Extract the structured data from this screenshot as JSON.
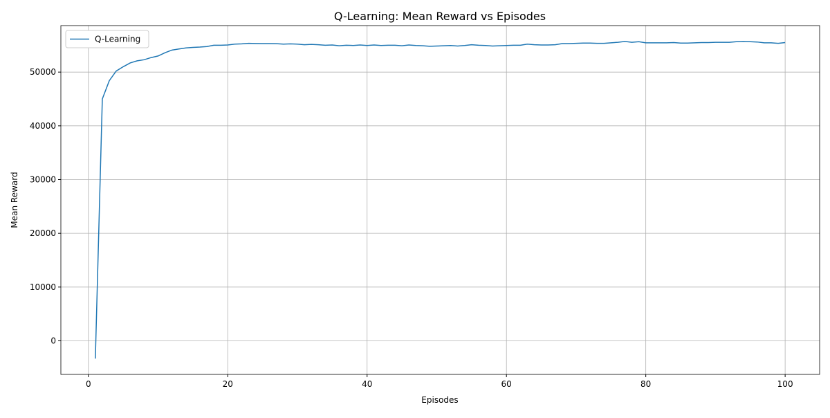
{
  "chart_data": {
    "type": "line",
    "title": "Q-Learning: Mean Reward vs Episodes",
    "xlabel": "Episodes",
    "ylabel": "Mean Reward",
    "x": [
      1,
      2,
      3,
      4,
      5,
      6,
      7,
      8,
      9,
      10,
      11,
      12,
      13,
      14,
      15,
      16,
      17,
      18,
      19,
      20,
      21,
      22,
      23,
      24,
      25,
      26,
      27,
      28,
      29,
      30,
      31,
      32,
      33,
      34,
      35,
      36,
      37,
      38,
      39,
      40,
      41,
      42,
      43,
      44,
      45,
      46,
      47,
      48,
      49,
      50,
      51,
      52,
      53,
      54,
      55,
      56,
      57,
      58,
      59,
      60,
      61,
      62,
      63,
      64,
      65,
      66,
      67,
      68,
      69,
      70,
      71,
      72,
      73,
      74,
      75,
      76,
      77,
      78,
      79,
      80,
      81,
      82,
      83,
      84,
      85,
      86,
      87,
      88,
      89,
      90,
      91,
      92,
      93,
      94,
      95,
      96,
      97,
      98,
      99,
      100
    ],
    "series": [
      {
        "name": "Q-Learning",
        "color": "#1f77b4",
        "values": [
          -3300,
          45000,
          48400,
          50200,
          51000,
          51700,
          52100,
          52300,
          52700,
          53000,
          53600,
          54100,
          54300,
          54500,
          54600,
          54650,
          54750,
          55000,
          55000,
          55050,
          55200,
          55250,
          55350,
          55320,
          55300,
          55300,
          55280,
          55200,
          55250,
          55200,
          55100,
          55150,
          55100,
          55000,
          55050,
          54900,
          55000,
          54950,
          55050,
          54950,
          55050,
          54950,
          55000,
          55000,
          54900,
          55050,
          54950,
          54900,
          54800,
          54850,
          54900,
          54950,
          54850,
          54950,
          55100,
          55000,
          54950,
          54850,
          54900,
          54950,
          55000,
          55000,
          55200,
          55100,
          55050,
          55050,
          55100,
          55300,
          55300,
          55350,
          55400,
          55400,
          55350,
          55350,
          55450,
          55550,
          55700,
          55550,
          55650,
          55450,
          55450,
          55450,
          55450,
          55500,
          55400,
          55400,
          55450,
          55500,
          55500,
          55550,
          55550,
          55550,
          55650,
          55700,
          55650,
          55600,
          55450,
          55450,
          55350,
          55500
        ]
      }
    ],
    "xlim": [
      -3.95,
      104.95
    ],
    "xticks": [
      0,
      20,
      40,
      60,
      80,
      100
    ],
    "ylim": [
      -6250,
      58650
    ],
    "yticks": [
      0,
      10000,
      20000,
      30000,
      40000,
      50000
    ],
    "grid": true,
    "legend": "upper-left"
  }
}
